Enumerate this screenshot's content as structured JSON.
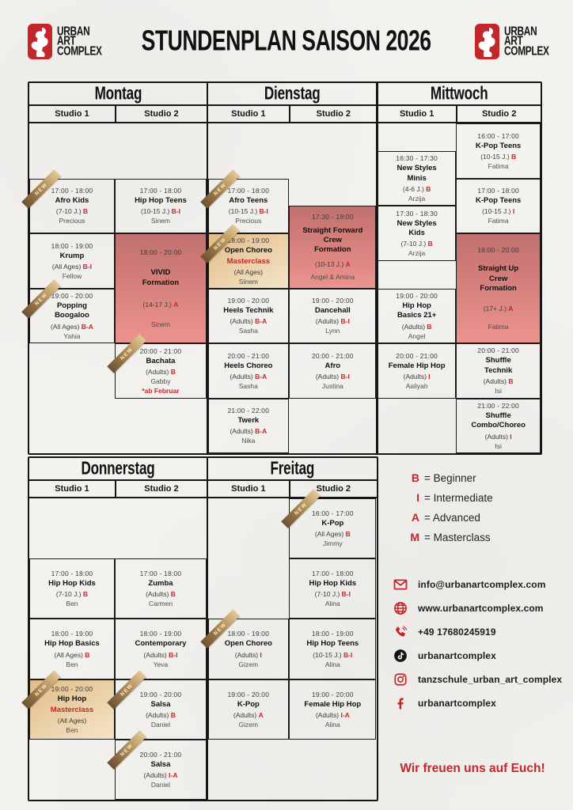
{
  "brand": {
    "logo_lines": [
      "URBAN",
      "ART",
      "COMPLEX"
    ],
    "accent_red": "#c3272b"
  },
  "header": {
    "title": "STUNDENPLAN SAISON 2026"
  },
  "ribbon_label": "NEW",
  "colors": {
    "paper": "#f3f2ef",
    "grid_line": "#1b1b1b",
    "formation_cell_top": "#c1706e",
    "formation_cell_bottom": "#ec938d",
    "masterclass_cell_top": "#e2bc88",
    "masterclass_cell_bottom": "#f3e5c7",
    "ribbon_gold": "#b08c55"
  },
  "legend": [
    {
      "letter": "B",
      "label": "= Beginner"
    },
    {
      "letter": "I",
      "label": "= Intermediate"
    },
    {
      "letter": "A",
      "label": "= Advanced"
    },
    {
      "letter": "M",
      "label": "= Masterclass"
    }
  ],
  "contacts": [
    {
      "icon": "mail-icon",
      "text": "info@urbanartcomplex.com"
    },
    {
      "icon": "globe-icon",
      "text": "www.urbanartcomplex.com"
    },
    {
      "icon": "phone-icon",
      "text": "+49 17680245919"
    },
    {
      "icon": "tiktok-icon",
      "text": "urbanartcomplex"
    },
    {
      "icon": "instagram-icon",
      "text": "tanzschule_urban_art_complex"
    },
    {
      "icon": "facebook-icon",
      "text": "urbanartcomplex"
    }
  ],
  "closing": "Wir freuen uns auf Euch!",
  "schedule": {
    "studio_labels": [
      "Studio 1",
      "Studio 2"
    ],
    "days": [
      {
        "name": "Montag",
        "section": "top",
        "studios": [
          {
            "classes": [
              {
                "time": "17:00 - 18:00",
                "start": 17,
                "end": 18,
                "name": "Afro Kids",
                "age": "(7-10 J.)",
                "level": "B",
                "instructor": "Precious",
                "new": true
              },
              {
                "time": "18:00 - 19:00",
                "start": 18,
                "end": 19,
                "name": "Krump",
                "age": "(All Ages)",
                "level": "B-I",
                "instructor": "Fellow"
              },
              {
                "time": "19:00 - 20:00",
                "start": 19,
                "end": 20,
                "name": "Popping\nBoogaloo",
                "age": "(All Ages)",
                "level": "B-A",
                "instructor": "Yahia",
                "new": true
              }
            ]
          },
          {
            "classes": [
              {
                "time": "17:00 - 18:00",
                "start": 17,
                "end": 18,
                "name": "Hip Hop Teens",
                "age": "(10-15 J.)",
                "level": "B-I",
                "instructor": "Sinem"
              },
              {
                "time": "18:00 - 20:00",
                "start": 18,
                "end": 20,
                "name": "VIVID\nFormation",
                "age": "(14-17 J.)",
                "level": "A",
                "instructor": "Sinem",
                "variant": "pink"
              },
              {
                "time": "20:00 - 21:00",
                "start": 20,
                "end": 21,
                "name": "Bachata",
                "age": "(Adults)",
                "level": "B",
                "instructor": "Gabby",
                "note": "*ab Februar",
                "new": true
              }
            ]
          }
        ]
      },
      {
        "name": "Dienstag",
        "section": "top",
        "studios": [
          {
            "classes": [
              {
                "time": "17:00 - 18:00",
                "start": 17,
                "end": 18,
                "name": "Afro Teens",
                "age": "(10-15 J.)",
                "level": "B-I",
                "instructor": "Precious",
                "new": true
              },
              {
                "time": "18:00 - 19:00",
                "start": 18,
                "end": 19,
                "name": "Open Choreo",
                "name_red": "Masterclass",
                "age": "(All Ages)",
                "instructor": "Sinem",
                "variant": "tan",
                "new": true
              },
              {
                "time": "19:00 - 20:00",
                "start": 19,
                "end": 20,
                "name": "Heels Technik",
                "age": "(Adults)",
                "level": "B-A",
                "instructor": "Sasha"
              },
              {
                "time": "20:00 - 21:00",
                "start": 20,
                "end": 21,
                "name": "Heels Choreo",
                "age": "(Adults)",
                "level": "B-A",
                "instructor": "Sasha"
              },
              {
                "time": "21:00 - 22:00",
                "start": 21,
                "end": 22,
                "name": "Twerk",
                "age": "(Adults)",
                "level": "B-A",
                "instructor": "Nika"
              }
            ]
          },
          {
            "classes": [
              {
                "time": "17:30 - 19:00",
                "start": 17.5,
                "end": 19,
                "name": "Straight Forward\nCrew\nFormation",
                "age": "(10-13 J.)",
                "level": "A",
                "instructor": "Angel & Amina",
                "variant": "pink"
              },
              {
                "time": "19:00 - 20:00",
                "start": 19,
                "end": 20,
                "name": "Dancehall",
                "age": "(Adults)",
                "level": "B-I",
                "instructor": "Lynn"
              },
              {
                "time": "20:00 - 21:00",
                "start": 20,
                "end": 21,
                "name": "Afro",
                "age": "(Adults)",
                "level": "B-I",
                "instructor": "Justina"
              }
            ]
          }
        ]
      },
      {
        "name": "Mittwoch",
        "section": "top",
        "studios": [
          {
            "classes": [
              {
                "time": "16:30 - 17:30",
                "start": 16.5,
                "end": 17.5,
                "name": "New Styles\nMinis",
                "age": "(4-6 J.)",
                "level": "B",
                "instructor": "Arzija"
              },
              {
                "time": "17:30 - 18:30",
                "start": 17.5,
                "end": 18.5,
                "name": "New Styles\nKids",
                "age": "(7-10 J.)",
                "level": "B",
                "instructor": "Arzija"
              },
              {
                "time": "19:00 - 20:00",
                "start": 19,
                "end": 20,
                "name": "Hip Hop\nBasics 21+",
                "age": "(Adults)",
                "level": "B",
                "instructor": "Angel"
              },
              {
                "time": "20:00 - 21:00",
                "start": 20,
                "end": 21,
                "name": "Female Hip Hop",
                "age": "(Adults)",
                "level": "I",
                "instructor": "Aaliyah"
              }
            ]
          },
          {
            "classes": [
              {
                "time": "16:00 - 17:00",
                "start": 16,
                "end": 17,
                "name": "K-Pop Teens",
                "age": "(10-15 J.)",
                "level": "B",
                "instructor": "Fatima"
              },
              {
                "time": "17:00 - 18:00",
                "start": 17,
                "end": 18,
                "name": "K-Pop Teens",
                "age": "(10-15 J.)",
                "level": "I",
                "instructor": "Fatima"
              },
              {
                "time": "18:00 - 20:00",
                "start": 18,
                "end": 20,
                "name": "Straight Up\nCrew\nFormation",
                "age": "(17+ J.)",
                "level": "A",
                "instructor": "Fatima",
                "variant": "pink"
              },
              {
                "time": "20:00 - 21:00",
                "start": 20,
                "end": 21,
                "name": "Shuffle\nTechnik",
                "age": "(Adults)",
                "level": "B",
                "instructor": "Isi"
              },
              {
                "time": "21:00 - 22:00",
                "start": 21,
                "end": 22,
                "name": "Shuffle\nCombo/Choreo",
                "age": "(Adults)",
                "level": "I",
                "instructor": "Isi"
              }
            ]
          }
        ]
      },
      {
        "name": "Donnerstag",
        "section": "bottom",
        "studios": [
          {
            "classes": [
              {
                "time": "17:00 - 18:00",
                "start": 17,
                "end": 18,
                "name": "Hip Hop Kids",
                "age": "(7-10 J.)",
                "level": "B",
                "instructor": "Ben"
              },
              {
                "time": "18:00 - 19:00",
                "start": 18,
                "end": 19,
                "name": "Hip Hop Basics",
                "age": "(All Ages)",
                "level": "B",
                "instructor": "Ben"
              },
              {
                "time": "19:00 - 20:00",
                "start": 19,
                "end": 20,
                "name": "Hip Hop",
                "name_red": "Masterclass",
                "age": "(All Ages)",
                "instructor": "Ben",
                "variant": "tan",
                "new": true
              }
            ]
          },
          {
            "classes": [
              {
                "time": "17:00 - 18:00",
                "start": 17,
                "end": 18,
                "name": "Zumba",
                "age": "(Adults)",
                "level": "B",
                "instructor": "Carmen"
              },
              {
                "time": "18:00 - 19:00",
                "start": 18,
                "end": 19,
                "name": "Contemporary",
                "age": "(Adults)",
                "level": "B-I",
                "instructor": "Yeva"
              },
              {
                "time": "19:00 - 20:00",
                "start": 19,
                "end": 20,
                "name": "Salsa",
                "age": "(Adults)",
                "level": "B",
                "instructor": "Daniel",
                "new": true
              },
              {
                "time": "20:00 - 21:00",
                "start": 20,
                "end": 21,
                "name": "Salsa",
                "age": "(Adults)",
                "level": "I-A",
                "instructor": "Daniel",
                "new": true
              }
            ]
          }
        ]
      },
      {
        "name": "Freitag",
        "section": "bottom",
        "studios": [
          {
            "classes": [
              {
                "time": "18:00 - 19:00",
                "start": 18,
                "end": 19,
                "name": "Open Choreo",
                "age": "(Adults)",
                "level": "I",
                "instructor": "Gizem",
                "new": true
              },
              {
                "time": "19:00 - 20:00",
                "start": 19,
                "end": 20,
                "name": "K-Pop",
                "age": "(Adults)",
                "level": "A",
                "instructor": "Gizem"
              }
            ]
          },
          {
            "classes": [
              {
                "time": "16:00 - 17:00",
                "start": 16,
                "end": 17,
                "name": "K-Pop",
                "age": "(All Ages)",
                "level": "B",
                "instructor": "Jimmy",
                "new": true
              },
              {
                "time": "17:00 - 18:00",
                "start": 17,
                "end": 18,
                "name": "Hip Hop Kids",
                "age": "(7-10 J.)",
                "level": "B-I",
                "instructor": "Alina"
              },
              {
                "time": "18:00 - 19:00",
                "start": 18,
                "end": 19,
                "name": "Hip Hop Teens",
                "age": "(10-15 J.)",
                "level": "B-I",
                "instructor": "Alina"
              },
              {
                "time": "19:00 - 20:00",
                "start": 19,
                "end": 20,
                "name": "Female Hip Hop",
                "age": "(Adults)",
                "level": "I-A",
                "instructor": "Alina"
              }
            ]
          }
        ]
      }
    ]
  }
}
